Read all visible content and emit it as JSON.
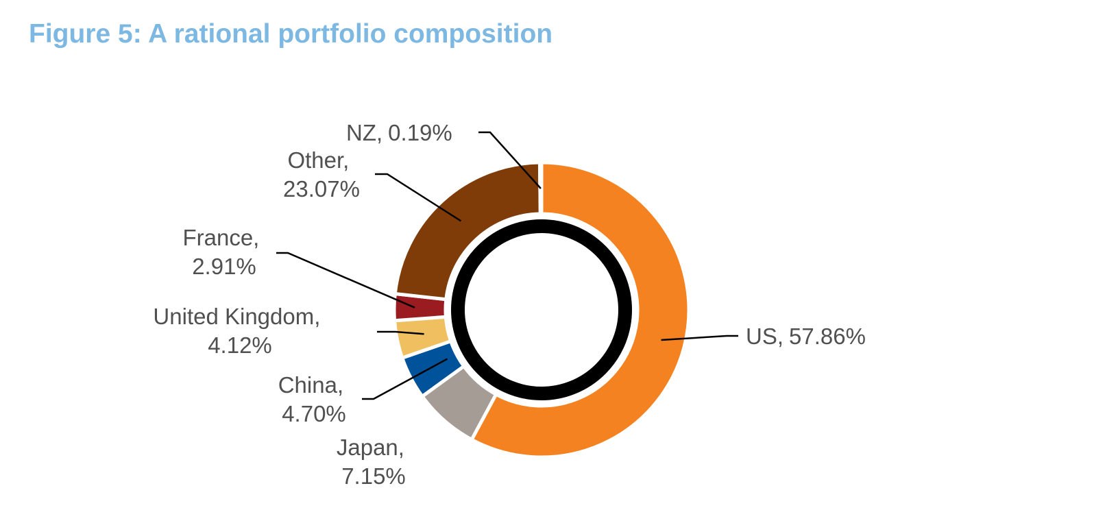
{
  "chart_data": {
    "type": "pie",
    "title": "Figure 5: A rational portfolio composition",
    "categories": [
      "US",
      "Japan",
      "China",
      "United Kingdom",
      "France",
      "Other",
      "NZ"
    ],
    "values": [
      57.86,
      7.15,
      4.7,
      4.12,
      2.91,
      23.07,
      0.19
    ],
    "labels": [
      {
        "name": "US,",
        "value": "57.86%"
      },
      {
        "name": "Japan,",
        "value": "7.15%"
      },
      {
        "name": "China,",
        "value": "4.70%"
      },
      {
        "name": "United Kingdom,",
        "value": "4.12%"
      },
      {
        "name": "France,",
        "value": "2.91%"
      },
      {
        "name": "Other,",
        "value": "23.07%"
      },
      {
        "name": "NZ,",
        "value": "0.19%"
      }
    ],
    "colors": [
      "#f58220",
      "#a59d95",
      "#00529b",
      "#f0c060",
      "#9b1c20",
      "#7f3c08",
      "#f2f2f2"
    ],
    "donut": true
  }
}
